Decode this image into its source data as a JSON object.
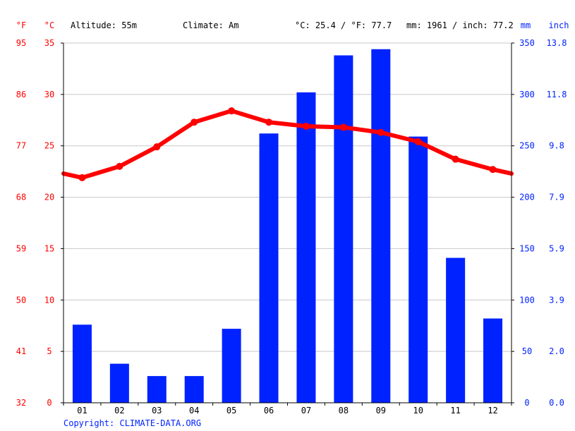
{
  "header": {
    "unit_f": "°F",
    "unit_c": "°C",
    "altitude": "Altitude: 55m",
    "climate": "Climate: Am",
    "temp_summary": "°C: 25.4 / °F: 77.7",
    "precip_summary": "mm: 1961 / inch: 77.2",
    "unit_mm": "mm",
    "unit_inch": "inch"
  },
  "footer": {
    "copyright": "Copyright: CLIMATE-DATA.ORG"
  },
  "colors": {
    "temp": "#ff0000",
    "precip": "#0022ff",
    "grid": "#c8c8c8",
    "axis": "#000000"
  },
  "chart_data": {
    "type": "bar",
    "categories": [
      "01",
      "02",
      "03",
      "04",
      "05",
      "06",
      "07",
      "08",
      "09",
      "10",
      "11",
      "12"
    ],
    "series": [
      {
        "axis": "right",
        "type": "bar",
        "unit": "mm",
        "values": [
          76,
          38,
          26,
          26,
          72,
          262,
          302,
          338,
          344,
          259,
          141,
          82
        ]
      },
      {
        "axis": "left",
        "type": "line",
        "unit": "°C",
        "values": [
          21.9,
          23.0,
          24.9,
          27.3,
          28.4,
          27.3,
          26.9,
          26.8,
          26.3,
          25.4,
          23.7,
          22.7
        ]
      }
    ],
    "temp_line_edges": {
      "start": 22.3,
      "end": 22.3
    },
    "axes": {
      "celsius": {
        "ticks": [
          "0",
          "5",
          "10",
          "15",
          "20",
          "25",
          "30",
          "35"
        ],
        "range": [
          0,
          35
        ]
      },
      "fahrenheit": {
        "ticks": [
          "32",
          "41",
          "50",
          "59",
          "68",
          "77",
          "86",
          "95"
        ]
      },
      "mm": {
        "ticks": [
          "0",
          "50",
          "100",
          "150",
          "200",
          "250",
          "300",
          "350"
        ],
        "range": [
          0,
          350
        ]
      },
      "inch": {
        "ticks": [
          "0.0",
          "2.0",
          "3.9",
          "5.9",
          "7.9",
          "9.8",
          "11.8",
          "13.8"
        ]
      }
    },
    "grid": true
  }
}
